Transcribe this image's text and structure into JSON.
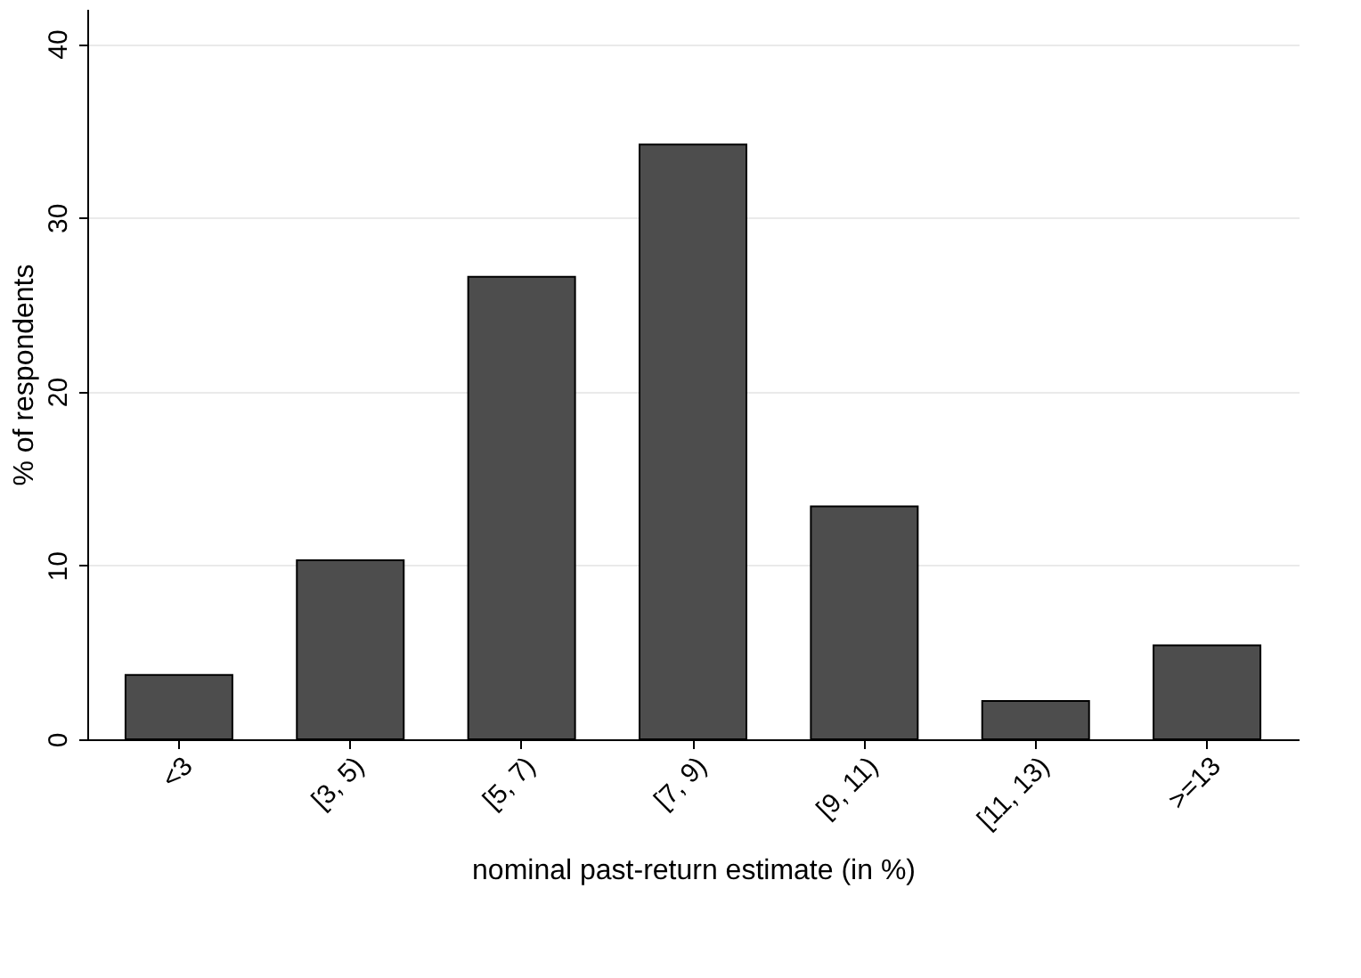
{
  "chart_data": {
    "type": "bar",
    "xlabel": "nominal past-return estimate (in %)",
    "ylabel": "% of respondents",
    "categories": [
      "<3",
      "[3, 5)",
      "[5, 7)",
      "[7, 9)",
      "[9, 11)",
      "[11, 13)",
      ">=13"
    ],
    "values": [
      3.7,
      10.3,
      26.6,
      34.2,
      13.4,
      2.2,
      5.4
    ],
    "color": "#4d4d4d",
    "ylim": [
      0,
      42
    ],
    "yticks": [
      0,
      10,
      20,
      30,
      40
    ],
    "grid": "y"
  }
}
